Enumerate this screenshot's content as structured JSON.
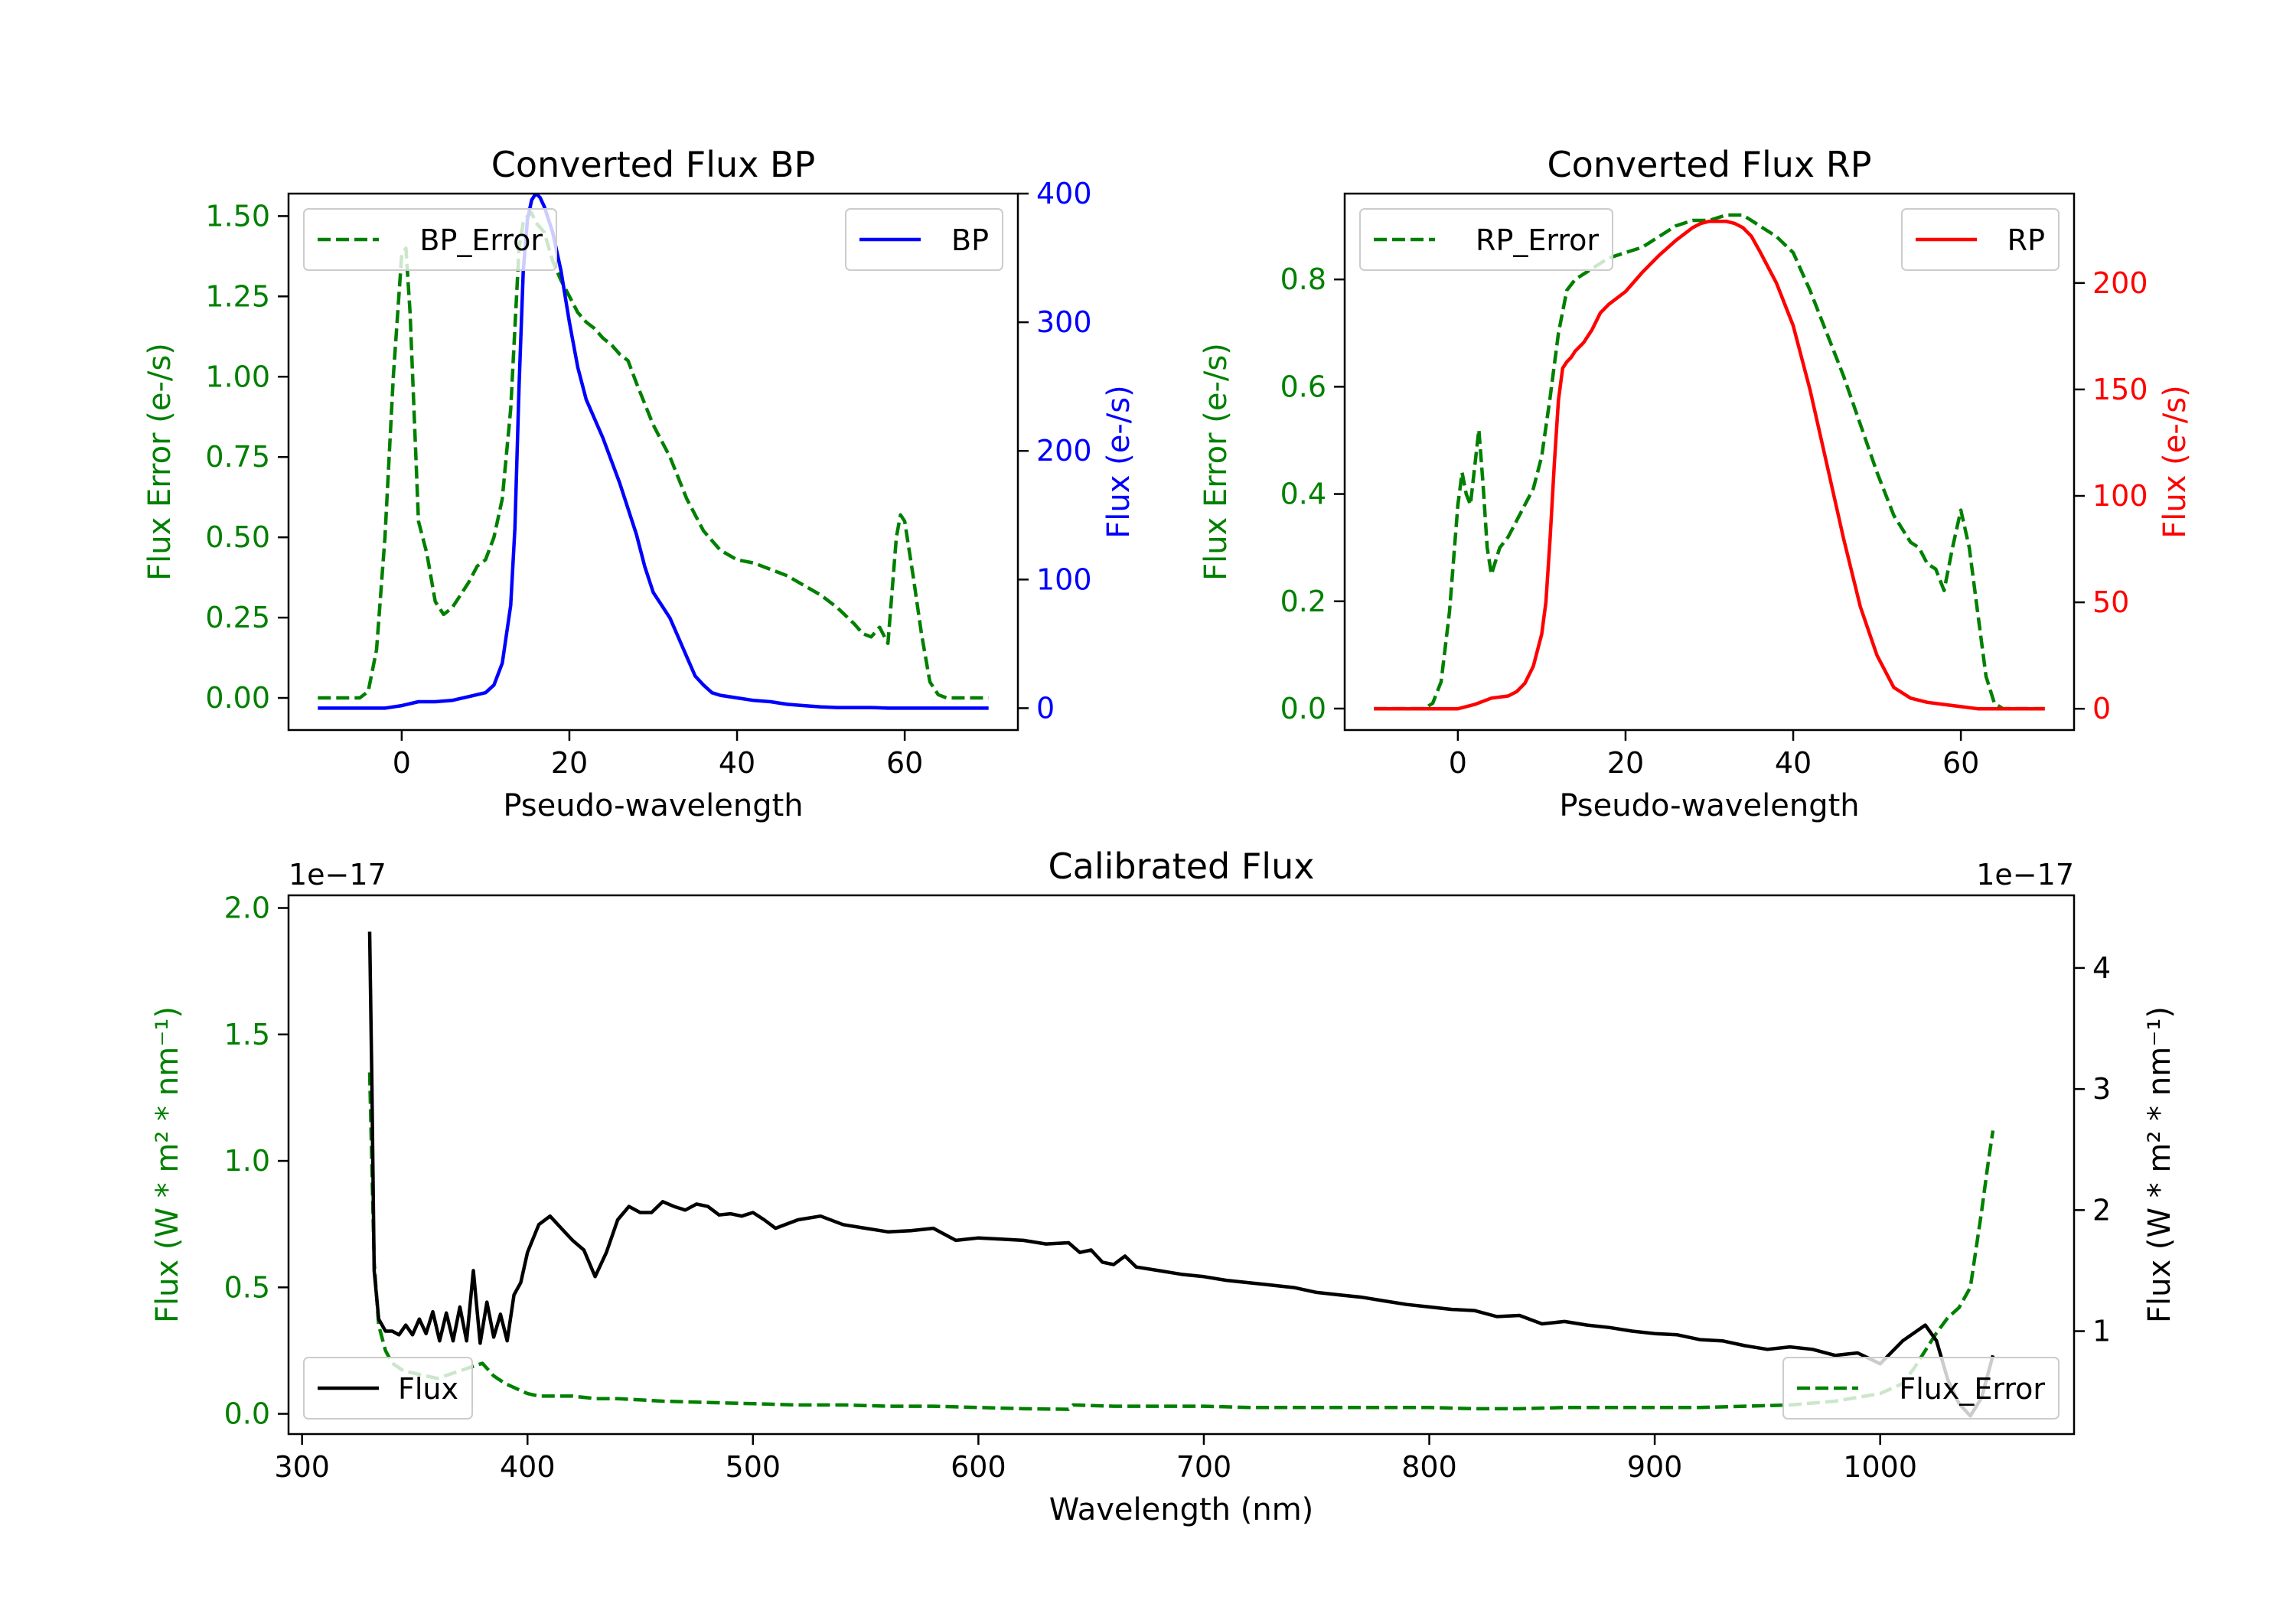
{
  "colors": {
    "green": "#008000",
    "blue": "#0000ff",
    "red": "#ff0000",
    "black": "#000000",
    "axis": "#000000"
  },
  "chart_data": [
    {
      "id": "bp",
      "type": "line",
      "title": "Converted Flux BP",
      "xlabel": "Pseudo-wavelength",
      "ylabel_left": "Flux Error (e-/s)",
      "ylabel_right": "Flux (e-/s)",
      "xlim": [
        -13.5,
        73.5
      ],
      "ylim_left": [
        -0.1,
        1.57
      ],
      "ylim_right": [
        -17,
        400
      ],
      "xticks": [
        0,
        20,
        40,
        60
      ],
      "xtick_labels": [
        "0",
        "20",
        "40",
        "60"
      ],
      "yticks_left": [
        0,
        0.25,
        0.5,
        0.75,
        1.0,
        1.25,
        1.5
      ],
      "ytick_labels_left": [
        "0.00",
        "0.25",
        "0.50",
        "0.75",
        "1.00",
        "1.25",
        "1.50"
      ],
      "yticks_right": [
        0,
        100,
        200,
        300,
        400
      ],
      "ytick_labels_right": [
        "0",
        "100",
        "200",
        "300",
        "400"
      ],
      "series": [
        {
          "name": "BP_Error",
          "axis": "left",
          "style": "dashed",
          "color": "#008000",
          "legend": "top-left",
          "x": [
            -10,
            -5,
            -4,
            -3,
            -2,
            -1,
            0,
            0.5,
            1,
            2,
            3,
            4,
            5,
            6,
            7,
            8,
            9,
            10,
            11,
            12,
            13,
            14,
            14.5,
            15,
            15.5,
            16,
            17,
            18,
            19,
            20,
            21,
            22,
            23,
            24,
            25,
            26,
            27,
            28,
            30,
            32,
            34,
            36,
            38,
            40,
            42,
            44,
            46,
            48,
            50,
            52,
            54,
            55,
            56,
            57,
            58,
            59,
            59.5,
            60,
            61,
            62,
            63,
            64,
            65,
            66,
            68,
            70
          ],
          "y": [
            0,
            0,
            0.02,
            0.15,
            0.5,
            1.0,
            1.38,
            1.4,
            1.2,
            0.55,
            0.45,
            0.3,
            0.26,
            0.28,
            0.32,
            0.36,
            0.41,
            0.43,
            0.5,
            0.62,
            0.9,
            1.4,
            1.48,
            1.5,
            1.51,
            1.48,
            1.45,
            1.36,
            1.3,
            1.25,
            1.2,
            1.17,
            1.15,
            1.12,
            1.1,
            1.07,
            1.05,
            0.98,
            0.85,
            0.75,
            0.62,
            0.52,
            0.46,
            0.43,
            0.42,
            0.4,
            0.38,
            0.35,
            0.32,
            0.28,
            0.23,
            0.2,
            0.19,
            0.22,
            0.17,
            0.5,
            0.57,
            0.55,
            0.38,
            0.2,
            0.05,
            0.01,
            0,
            0,
            0,
            0
          ]
        },
        {
          "name": "BP",
          "axis": "right",
          "style": "solid",
          "color": "#0000ff",
          "legend": "top-right",
          "x": [
            -10,
            -5,
            -2,
            0,
            2,
            4,
            6,
            8,
            10,
            11,
            12,
            13,
            13.5,
            14,
            14.5,
            15,
            15.5,
            16,
            16.5,
            17,
            18,
            19,
            20,
            21,
            22,
            24,
            26,
            28,
            29,
            30,
            31,
            32,
            33,
            34,
            35,
            36,
            37,
            38,
            40,
            42,
            44,
            46,
            48,
            50,
            52,
            54,
            56,
            58,
            60,
            62,
            64,
            66,
            68,
            70
          ],
          "y": [
            0,
            0,
            0,
            2,
            5,
            5,
            6,
            9,
            12,
            18,
            35,
            80,
            140,
            250,
            340,
            380,
            395,
            400,
            397,
            390,
            370,
            340,
            300,
            265,
            240,
            210,
            175,
            135,
            110,
            90,
            80,
            70,
            55,
            40,
            25,
            18,
            12,
            10,
            8,
            6,
            5,
            3,
            2,
            1,
            0.5,
            0.5,
            0.5,
            0,
            0,
            0,
            0,
            0,
            0,
            0
          ]
        }
      ]
    },
    {
      "id": "rp",
      "type": "line",
      "title": "Converted Flux RP",
      "xlabel": "Pseudo-wavelength",
      "ylabel_left": "Flux Error (e-/s)",
      "ylabel_right": "Flux (e-/s)",
      "xlim": [
        -13.5,
        73.5
      ],
      "ylim_left": [
        -0.04,
        0.96
      ],
      "ylim_right": [
        -10,
        242
      ],
      "xticks": [
        0,
        20,
        40,
        60
      ],
      "xtick_labels": [
        "0",
        "20",
        "40",
        "60"
      ],
      "yticks_left": [
        0,
        0.2,
        0.4,
        0.6,
        0.8
      ],
      "ytick_labels_left": [
        "0.0",
        "0.2",
        "0.4",
        "0.6",
        "0.8"
      ],
      "yticks_right": [
        0,
        50,
        100,
        150,
        200
      ],
      "ytick_labels_right": [
        "0",
        "50",
        "100",
        "150",
        "200"
      ],
      "series": [
        {
          "name": "RP_Error",
          "axis": "left",
          "style": "dashed",
          "color": "#008000",
          "legend": "top-left",
          "x": [
            -10,
            -5,
            -4,
            -3,
            -2,
            -1,
            0,
            0.5,
            1,
            1.5,
            2,
            2.5,
            3,
            3.5,
            4,
            5,
            6,
            7,
            8,
            9,
            10,
            11,
            12,
            13,
            14,
            16,
            18,
            20,
            22,
            24,
            26,
            28,
            30,
            32,
            34,
            36,
            38,
            40,
            42,
            44,
            46,
            48,
            50,
            52,
            54,
            55,
            56,
            57,
            58,
            59,
            60,
            61,
            62,
            63,
            64,
            65,
            66,
            68,
            70
          ],
          "y": [
            0,
            0,
            0,
            0.01,
            0.05,
            0.18,
            0.38,
            0.44,
            0.4,
            0.38,
            0.45,
            0.52,
            0.42,
            0.3,
            0.25,
            0.3,
            0.32,
            0.35,
            0.38,
            0.41,
            0.47,
            0.58,
            0.7,
            0.78,
            0.8,
            0.82,
            0.84,
            0.85,
            0.86,
            0.88,
            0.9,
            0.91,
            0.91,
            0.92,
            0.92,
            0.9,
            0.88,
            0.85,
            0.78,
            0.7,
            0.62,
            0.53,
            0.44,
            0.36,
            0.31,
            0.3,
            0.27,
            0.26,
            0.22,
            0.3,
            0.37,
            0.3,
            0.18,
            0.06,
            0.01,
            0,
            0,
            0,
            0
          ]
        },
        {
          "name": "RP",
          "axis": "right",
          "style": "solid",
          "color": "#ff0000",
          "legend": "top-right",
          "x": [
            -10,
            -5,
            -2,
            0,
            2,
            4,
            6,
            7,
            8,
            9,
            10,
            10.5,
            11,
            11.5,
            12,
            12.5,
            13,
            13.5,
            14,
            15,
            16,
            17,
            18,
            20,
            22,
            24,
            26,
            28,
            29,
            30,
            31,
            32,
            33,
            34,
            35,
            36,
            38,
            40,
            42,
            44,
            46,
            48,
            50,
            52,
            54,
            56,
            58,
            60,
            62,
            64,
            66,
            68,
            70
          ],
          "y": [
            0,
            0,
            0,
            0,
            2,
            5,
            6,
            8,
            12,
            20,
            35,
            50,
            80,
            115,
            145,
            160,
            163,
            165,
            168,
            172,
            178,
            186,
            190,
            196,
            205,
            213,
            220,
            226,
            228,
            229,
            229,
            229,
            228,
            226,
            222,
            215,
            200,
            180,
            150,
            115,
            80,
            48,
            25,
            10,
            5,
            3,
            2,
            1,
            0,
            0,
            0,
            0,
            0
          ]
        }
      ]
    },
    {
      "id": "cal",
      "type": "line",
      "title": "Calibrated Flux",
      "xlabel": "Wavelength (nm)",
      "ylabel_left": "Flux (W * m² * nm⁻¹)",
      "ylabel_right": "Flux (W * m² * nm⁻¹)",
      "offset_left": "1e−17",
      "offset_right": "1e−17",
      "xlim": [
        294,
        1086
      ],
      "ylim_left": [
        -0.08,
        2.05
      ],
      "ylim_right": [
        0.15,
        4.6
      ],
      "xticks": [
        300,
        400,
        500,
        600,
        700,
        800,
        900,
        1000
      ],
      "xtick_labels": [
        "300",
        "400",
        "500",
        "600",
        "700",
        "800",
        "900",
        "1000"
      ],
      "yticks_left": [
        0,
        0.5,
        1.0,
        1.5,
        2.0
      ],
      "ytick_labels_left": [
        "0.0",
        "0.5",
        "1.0",
        "1.5",
        "2.0"
      ],
      "yticks_right": [
        1,
        2,
        3,
        4
      ],
      "ytick_labels_right": [
        "1",
        "2",
        "3",
        "4"
      ],
      "series": [
        {
          "name": "Flux",
          "axis": "right",
          "style": "solid",
          "color": "#000000",
          "legend": "bottom-left",
          "x": [
            330,
            331,
            332,
            334,
            337,
            340,
            343,
            346,
            349,
            352,
            355,
            358,
            361,
            364,
            367,
            370,
            373,
            376,
            379,
            382,
            385,
            388,
            391,
            394,
            397,
            400,
            405,
            410,
            415,
            420,
            425,
            430,
            435,
            440,
            445,
            450,
            455,
            460,
            465,
            470,
            475,
            480,
            485,
            490,
            495,
            500,
            505,
            510,
            520,
            530,
            540,
            550,
            560,
            570,
            580,
            590,
            600,
            610,
            620,
            630,
            640,
            645,
            650,
            655,
            660,
            665,
            670,
            680,
            690,
            700,
            710,
            720,
            730,
            740,
            750,
            760,
            770,
            780,
            790,
            800,
            810,
            820,
            830,
            840,
            850,
            860,
            870,
            880,
            890,
            900,
            910,
            920,
            930,
            940,
            950,
            960,
            970,
            980,
            990,
            1000,
            1010,
            1020,
            1025,
            1030,
            1035,
            1040,
            1045,
            1050
          ],
          "y": [
            4.3,
            3.0,
            1.5,
            1.1,
            1.0,
            1.0,
            0.97,
            1.05,
            0.97,
            1.1,
            0.98,
            1.16,
            0.92,
            1.15,
            0.92,
            1.2,
            0.92,
            1.5,
            0.9,
            1.24,
            0.95,
            1.14,
            0.92,
            1.3,
            1.4,
            1.65,
            1.88,
            1.95,
            1.85,
            1.75,
            1.67,
            1.45,
            1.65,
            1.92,
            2.03,
            1.98,
            1.98,
            2.07,
            2.03,
            2.0,
            2.05,
            2.03,
            1.96,
            1.97,
            1.95,
            1.98,
            1.92,
            1.85,
            1.92,
            1.95,
            1.88,
            1.85,
            1.82,
            1.83,
            1.85,
            1.75,
            1.77,
            1.76,
            1.75,
            1.72,
            1.73,
            1.65,
            1.67,
            1.57,
            1.55,
            1.62,
            1.53,
            1.5,
            1.47,
            1.45,
            1.42,
            1.4,
            1.38,
            1.36,
            1.32,
            1.3,
            1.28,
            1.25,
            1.22,
            1.2,
            1.18,
            1.17,
            1.12,
            1.13,
            1.06,
            1.08,
            1.05,
            1.03,
            1.0,
            0.98,
            0.97,
            0.93,
            0.92,
            0.88,
            0.85,
            0.87,
            0.85,
            0.8,
            0.82,
            0.73,
            0.92,
            1.05,
            0.92,
            0.6,
            0.4,
            0.3,
            0.45,
            0.8
          ]
        },
        {
          "name": "Flux_Error",
          "axis": "left",
          "style": "dashed",
          "color": "#008000",
          "legend": "bottom-right",
          "x": [
            330,
            332,
            334,
            337,
            340,
            345,
            350,
            360,
            370,
            380,
            385,
            390,
            400,
            405,
            410,
            420,
            430,
            440,
            460,
            480,
            500,
            520,
            540,
            560,
            580,
            600,
            620,
            640,
            642,
            660,
            680,
            700,
            720,
            740,
            760,
            780,
            800,
            820,
            840,
            860,
            880,
            900,
            920,
            940,
            960,
            980,
            1000,
            1010,
            1015,
            1020,
            1025,
            1030,
            1035,
            1040,
            1045,
            1048,
            1050
          ],
          "y": [
            1.35,
            0.6,
            0.35,
            0.25,
            0.2,
            0.17,
            0.16,
            0.14,
            0.17,
            0.2,
            0.15,
            0.12,
            0.08,
            0.07,
            0.07,
            0.07,
            0.06,
            0.06,
            0.05,
            0.045,
            0.04,
            0.035,
            0.035,
            0.03,
            0.03,
            0.025,
            0.02,
            0.018,
            0.035,
            0.03,
            0.03,
            0.03,
            0.025,
            0.025,
            0.025,
            0.025,
            0.025,
            0.02,
            0.02,
            0.025,
            0.025,
            0.025,
            0.025,
            0.03,
            0.035,
            0.05,
            0.08,
            0.12,
            0.18,
            0.25,
            0.32,
            0.38,
            0.42,
            0.5,
            0.8,
            1.0,
            1.12
          ]
        }
      ]
    }
  ]
}
